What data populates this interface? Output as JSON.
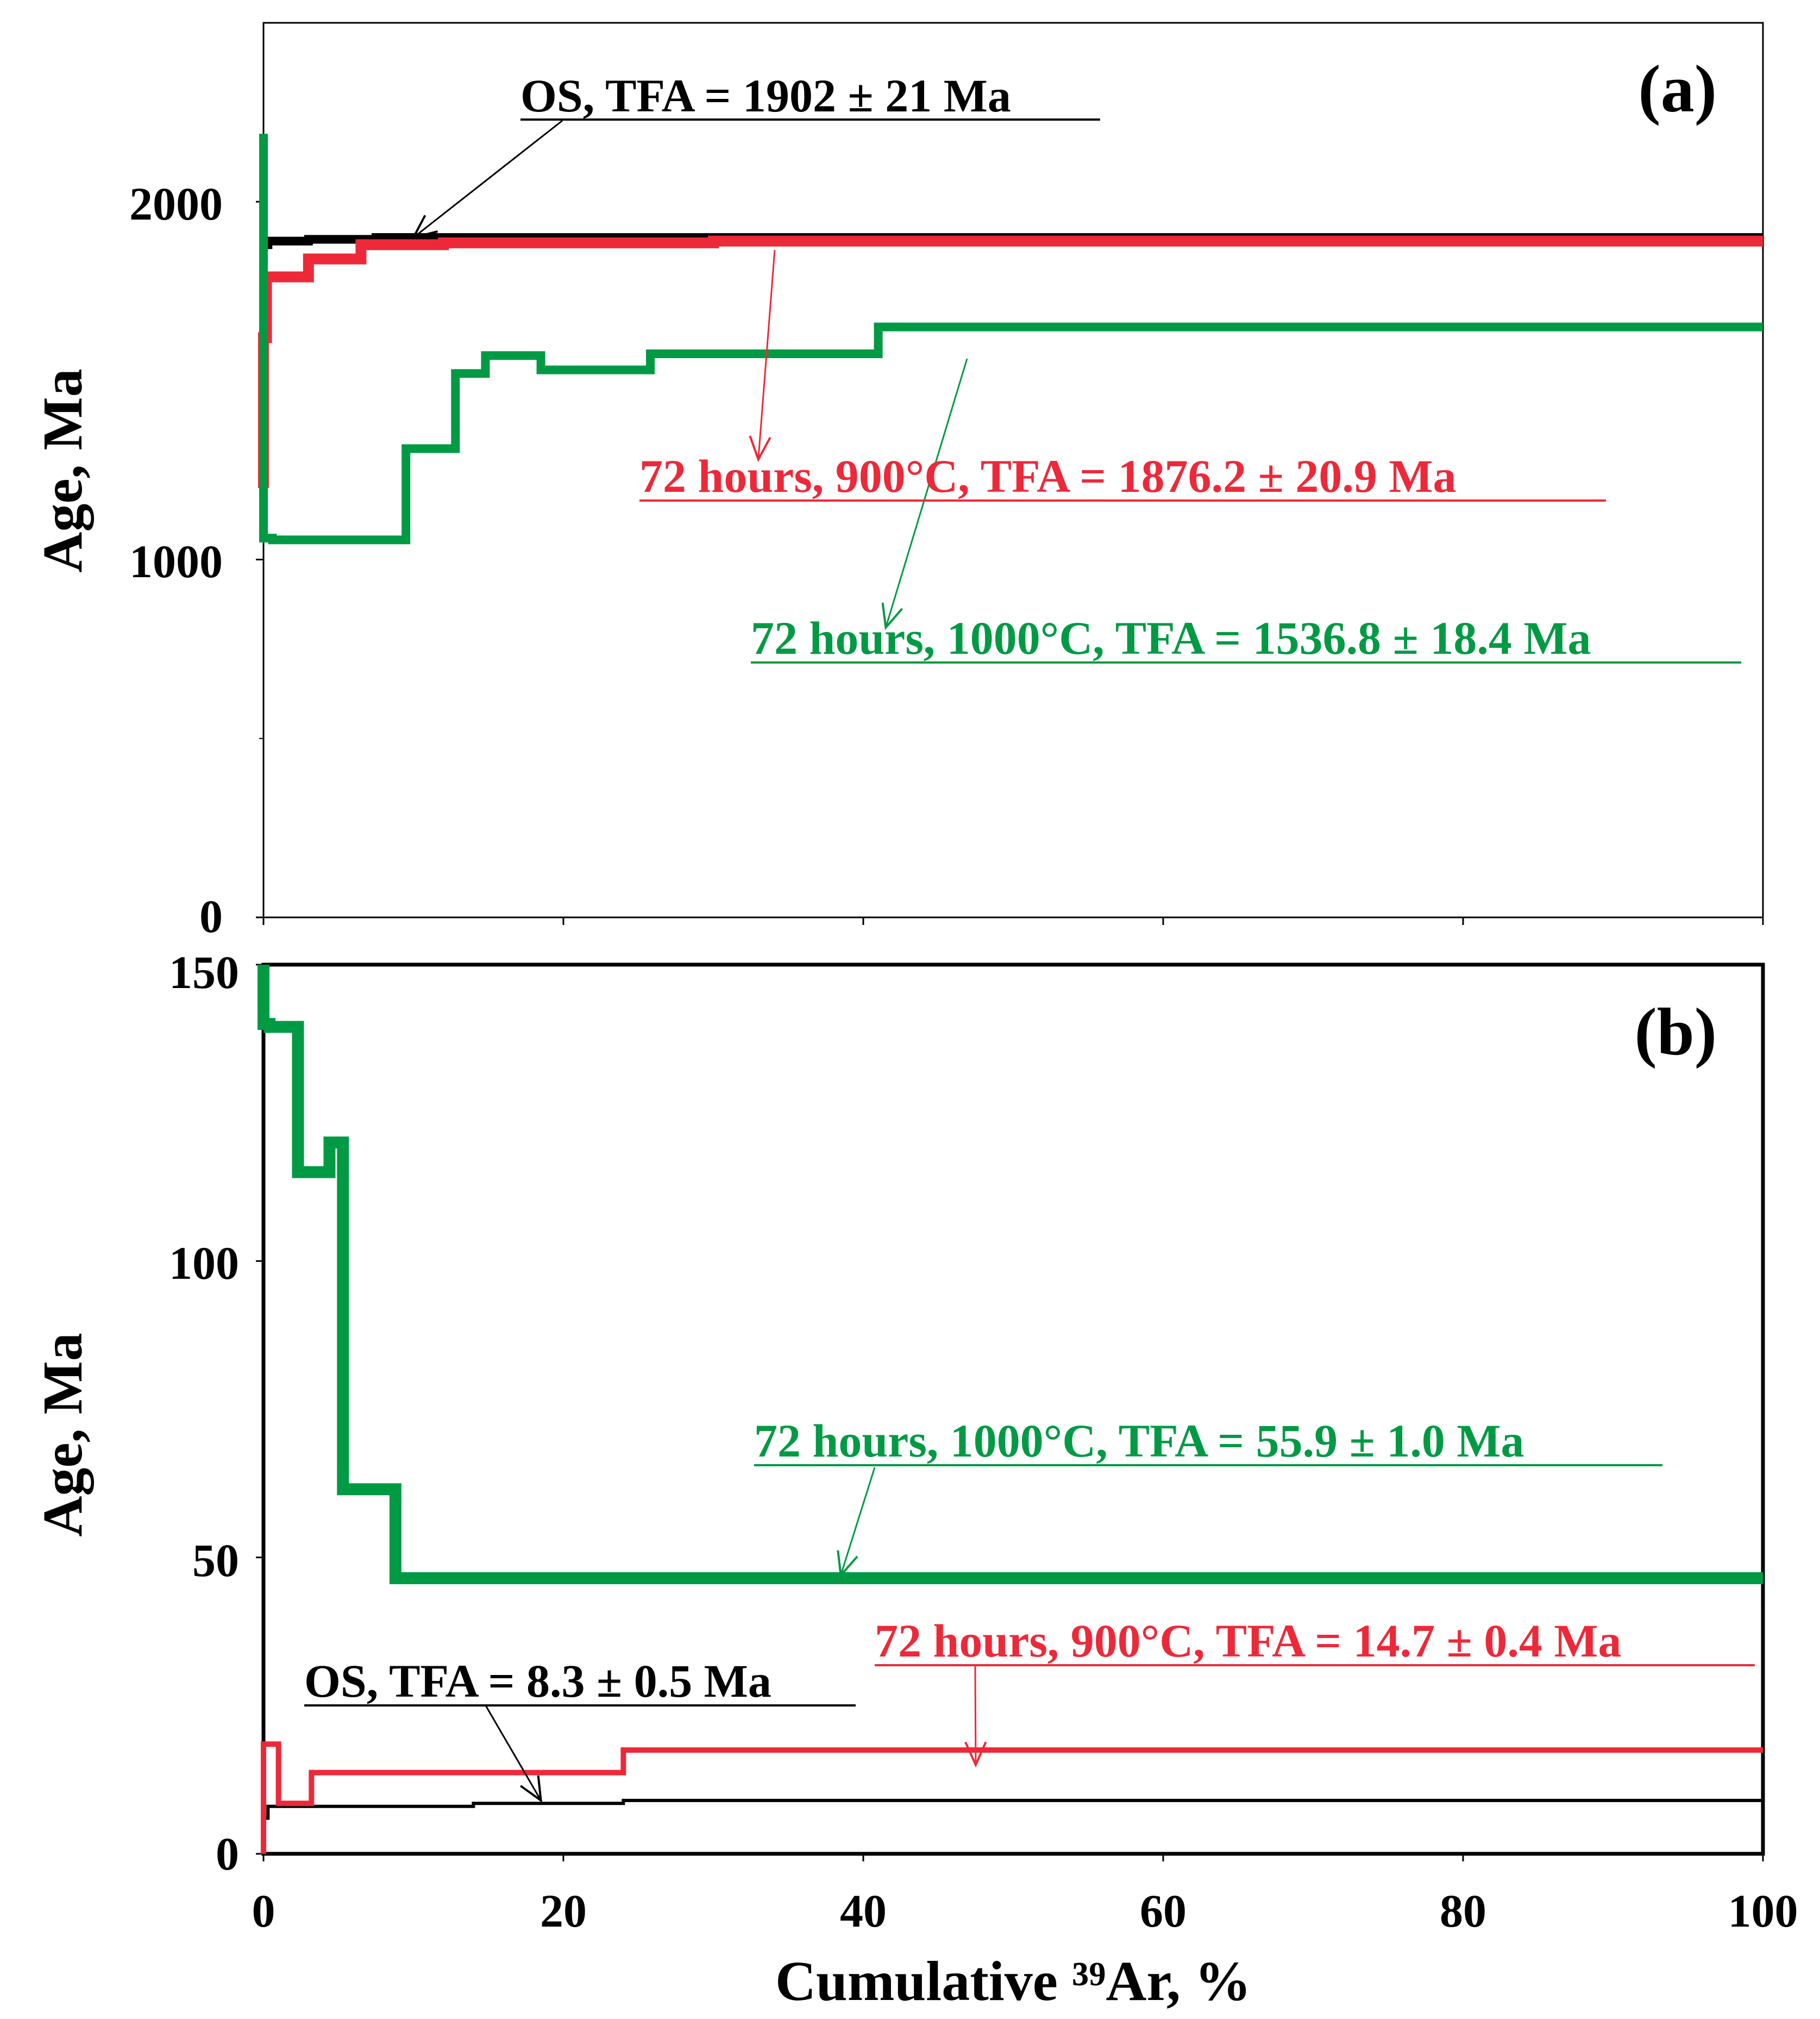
{
  "chart_data": [
    {
      "type": "line",
      "panel": "(a)",
      "ylabel": "Age, Ma",
      "xlim": [
        0,
        100
      ],
      "ylim": [
        0,
        2500
      ],
      "yticks": [
        0,
        1000,
        2000
      ],
      "yticks_minor": [
        500,
        1500
      ],
      "xticks": [
        0,
        20,
        40,
        60,
        80,
        100
      ],
      "xtick_labels_shown": false,
      "series": [
        {
          "name": "OS",
          "color": "#000000",
          "label": "OS, TFA = 1902 ± 21 Ma",
          "points": [
            [
              0,
              1700
            ],
            [
              0.3,
              1880
            ],
            [
              3,
              1890
            ],
            [
              7.5,
              1895
            ],
            [
              11.5,
              1900
            ],
            [
              100,
              1900
            ]
          ]
        },
        {
          "name": "72 hours, 900°C",
          "color": "#ed2939",
          "label": "72 hours, 900°C, TFA = 1876.2 ± 20.9 Ma",
          "points": [
            [
              0,
              1200
            ],
            [
              0.2,
              1620
            ],
            [
              3,
              1790
            ],
            [
              6.5,
              1840
            ],
            [
              12,
              1880
            ],
            [
              30,
              1885
            ],
            [
              100,
              1890
            ]
          ]
        },
        {
          "name": "72 hours, 1000°C",
          "color": "#009a44",
          "label": "72 hours, 1000°C, TFA = 1536.8 ± 18.4 Ma",
          "points": [
            [
              0,
              2190
            ],
            [
              0.6,
              1060
            ],
            [
              9.5,
              1055
            ],
            [
              12.8,
              1310
            ],
            [
              14.8,
              1520
            ],
            [
              18.5,
              1570
            ],
            [
              25.8,
              1530
            ],
            [
              41,
              1575
            ],
            [
              62,
              1650
            ],
            [
              100,
              1650
            ]
          ]
        }
      ],
      "annotations": [
        {
          "text": "OS, TFA = 1902 ± 21 Ma",
          "color": "#000000",
          "arrow_to": [
            10,
            1900
          ]
        },
        {
          "text": "72 hours, 900°C, TFA = 1876.2 ± 20.9 Ma",
          "color": "#ed2939",
          "arrow_to": [
            33,
            1280
          ]
        },
        {
          "text": "72 hours, 1000°C, TFA = 1536.8 ± 18.4 Ma",
          "color": "#009a44",
          "arrow_to": [
            41.5,
            810
          ]
        }
      ]
    },
    {
      "type": "line",
      "panel": "(b)",
      "ylabel": "Age, Ma",
      "xlabel": "Cumulative ³⁹Ar, %",
      "xlim": [
        0,
        100
      ],
      "ylim": [
        0,
        150
      ],
      "yticks": [
        0,
        50,
        100,
        150
      ],
      "xticks": [
        0,
        20,
        40,
        60,
        80,
        100
      ],
      "series": [
        {
          "name": "OS",
          "color": "#000000",
          "label": "OS, TFA = 8.3 ± 0.5 Ma",
          "points": [
            [
              0,
              12
            ],
            [
              0.3,
              6
            ],
            [
              14,
              8
            ],
            [
              24,
              8.5
            ],
            [
              58,
              9
            ],
            [
              100,
              9
            ]
          ]
        },
        {
          "name": "72 hours, 900°C",
          "color": "#ed2939",
          "label": "72 hours, 900°C, TFA = 14.7 ± 0.4 Ma",
          "points": [
            [
              0,
              0
            ],
            [
              1,
              18.5
            ],
            [
              3.2,
              8.5
            ],
            [
              24,
              13.7
            ],
            [
              51.5,
              17.5
            ],
            [
              100,
              17.5
            ]
          ]
        },
        {
          "name": "72 hours, 1000°C",
          "color": "#009a44",
          "label": "72 hours, 1000°C, TFA = 55.9 ± 1.0 Ma",
          "points": [
            [
              0,
              150
            ],
            [
              0.4,
              140
            ],
            [
              2.3,
              139.5
            ],
            [
              4.4,
              115
            ],
            [
              5.3,
              120
            ],
            [
              8.8,
              61.5
            ],
            [
              20.8,
              46.5
            ],
            [
              100,
              46.5
            ]
          ]
        }
      ],
      "annotations": [
        {
          "text": "72 hours, 1000°C, TFA = 55.9 ± 1.0 Ma",
          "color": "#009a44",
          "arrow_to": [
            38.5,
            47
          ]
        },
        {
          "text": "72 hours, 900°C, TFA = 14.7 ± 0.4 Ma",
          "color": "#ed2939",
          "arrow_to": [
            47.5,
            15
          ]
        },
        {
          "text": "OS, TFA = 8.3 ± 0.5 Ma",
          "color": "#000000",
          "arrow_to": [
            18.5,
            9
          ]
        }
      ]
    }
  ]
}
